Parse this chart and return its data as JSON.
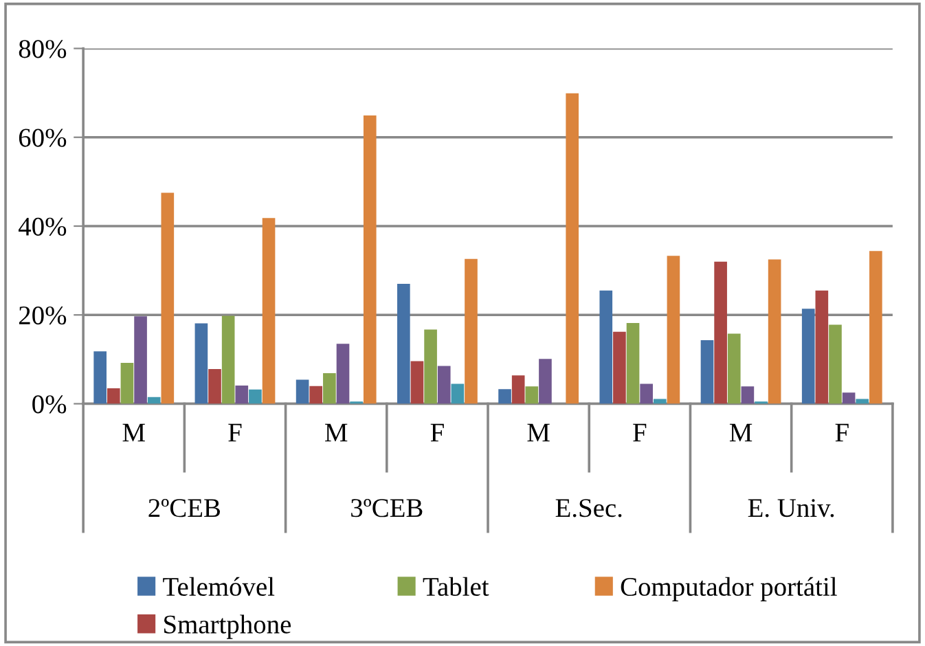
{
  "chart_data": {
    "type": "bar",
    "categories": [
      "M",
      "F",
      "M",
      "F",
      "M",
      "F",
      "M",
      "F"
    ],
    "annotations": [
      "2ºCEB",
      "3ºCEB",
      "E.Sec.",
      "E. Univ."
    ],
    "series": [
      {
        "name": "Telemóvel",
        "color": "#4572a7",
        "values": [
          11.8,
          18.1,
          5.4,
          27.0,
          3.3,
          25.5,
          14.3,
          21.4
        ]
      },
      {
        "name": "Smartphone",
        "color": "#aa4643",
        "values": [
          3.5,
          7.8,
          4.0,
          9.6,
          6.4,
          16.2,
          32.0,
          25.5
        ]
      },
      {
        "name": "Tablet",
        "color": "#89a54e",
        "values": [
          9.2,
          19.8,
          6.9,
          16.7,
          3.9,
          18.2,
          15.8,
          17.8
        ]
      },
      {
        "color": "#71588f",
        "values": [
          19.7,
          4.1,
          13.5,
          8.5,
          10.1,
          4.5,
          3.9,
          2.5
        ]
      },
      {
        "color": "#4198af",
        "values": [
          1.5,
          3.2,
          0.5,
          4.5,
          0,
          1.1,
          0.5,
          1.1
        ]
      },
      {
        "name": "Computador portátil",
        "color": "#db843d",
        "values": [
          47.5,
          41.8,
          64.9,
          32.6,
          69.9,
          33.3,
          32.5,
          34.4
        ]
      }
    ],
    "ylim": [
      0,
      80
    ],
    "yticks": [
      {
        "value": 0,
        "label": "0%"
      },
      {
        "value": 20,
        "label": "20%"
      },
      {
        "value": 40,
        "label": "40%"
      },
      {
        "value": 60,
        "label": "60%"
      },
      {
        "value": 80,
        "label": "80%"
      }
    ],
    "grid": "y",
    "legend": "bottom"
  }
}
